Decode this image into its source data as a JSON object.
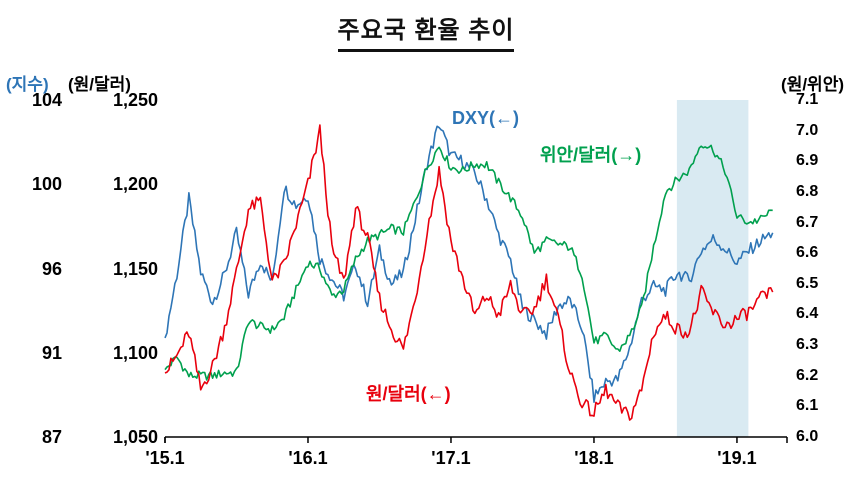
{
  "chart_data": {
    "type": "line",
    "title": "주요국 환율 추이",
    "x_range": [
      2015.0,
      2019.35
    ],
    "x_tick_labels": [
      "'15.1",
      "'16.1",
      "'17.1",
      "'18.1",
      "'19.1"
    ],
    "x_tick_positions": [
      2015.0,
      2016.0,
      2017.0,
      2018.0,
      2019.0
    ],
    "left_index_axis": {
      "unit": "(지수)",
      "ticks": [
        "104",
        "100",
        "96",
        "91",
        "87"
      ],
      "range": [
        87,
        104
      ]
    },
    "left_won_axis": {
      "unit": "(원/달러)",
      "ticks": [
        "1,250",
        "1,200",
        "1,150",
        "1,100",
        "1,050"
      ],
      "range": [
        1050,
        1250
      ]
    },
    "right_yuan_axis": {
      "unit": "(원/위안)",
      "ticks": [
        "7.1",
        "7.0",
        "6.9",
        "6.8",
        "6.7",
        "6.6",
        "6.5",
        "6.4",
        "6.3",
        "6.2",
        "6.1",
        "6.0"
      ],
      "range": [
        6.0,
        7.1
      ]
    },
    "shaded_region": {
      "from": 2018.58,
      "to": 2019.08
    },
    "x": [
      2015.0,
      2015.083,
      2015.167,
      2015.25,
      2015.333,
      2015.417,
      2015.5,
      2015.583,
      2015.667,
      2015.75,
      2015.833,
      2015.917,
      2016.0,
      2016.083,
      2016.167,
      2016.25,
      2016.333,
      2016.417,
      2016.5,
      2016.583,
      2016.667,
      2016.75,
      2016.833,
      2016.917,
      2017.0,
      2017.083,
      2017.167,
      2017.25,
      2017.333,
      2017.417,
      2017.5,
      2017.583,
      2017.667,
      2017.75,
      2017.833,
      2017.917,
      2018.0,
      2018.083,
      2018.167,
      2018.25,
      2018.333,
      2018.417,
      2018.5,
      2018.583,
      2018.667,
      2018.75,
      2018.833,
      2018.917,
      2019.0,
      2019.083,
      2019.167,
      2019.25
    ],
    "series": [
      {
        "name": "DXY",
        "label": "DXY(←)",
        "axis": "left_index",
        "color_key": "dxy",
        "values": [
          92.0,
          95.2,
          99.0,
          95.3,
          93.8,
          95.2,
          97.3,
          94.2,
          95.9,
          94.8,
          99.6,
          98.7,
          99.2,
          96.0,
          95.0,
          94.1,
          95.7,
          93.8,
          96.4,
          94.7,
          95.3,
          98.0,
          100.8,
          102.8,
          101.2,
          100.9,
          100.3,
          99.0,
          97.2,
          95.9,
          93.5,
          92.9,
          92.2,
          93.6,
          93.9,
          92.5,
          89.0,
          89.8,
          89.9,
          91.5,
          93.9,
          94.6,
          94.4,
          95.3,
          94.9,
          96.4,
          97.0,
          96.5,
          95.8,
          96.4,
          96.9,
          97.3
        ]
      },
      {
        "name": "위안/달러",
        "label": "위안/달러(→)",
        "axis": "right_yuan",
        "color_key": "cny",
        "values": [
          6.22,
          6.26,
          6.2,
          6.2,
          6.2,
          6.21,
          6.21,
          6.38,
          6.36,
          6.35,
          6.39,
          6.48,
          6.57,
          6.55,
          6.46,
          6.48,
          6.58,
          6.64,
          6.66,
          6.68,
          6.67,
          6.77,
          6.88,
          6.95,
          6.88,
          6.87,
          6.89,
          6.89,
          6.83,
          6.78,
          6.72,
          6.6,
          6.64,
          6.63,
          6.62,
          6.53,
          6.31,
          6.33,
          6.28,
          6.33,
          6.42,
          6.62,
          6.8,
          6.84,
          6.87,
          6.96,
          6.94,
          6.87,
          6.72,
          6.7,
          6.71,
          6.74
        ]
      },
      {
        "name": "원/달러",
        "label": "원/달러(←)",
        "axis": "left_won",
        "color_key": "krw",
        "values": [
          1088,
          1098,
          1112,
          1078,
          1092,
          1115,
          1148,
          1185,
          1190,
          1142,
          1152,
          1176,
          1200,
          1232,
          1162,
          1142,
          1186,
          1168,
          1132,
          1114,
          1102,
          1132,
          1172,
          1208,
          1166,
          1144,
          1122,
          1134,
          1122,
          1140,
          1122,
          1126,
          1144,
          1120,
          1088,
          1070,
          1064,
          1078,
          1068,
          1062,
          1078,
          1112,
          1122,
          1114,
          1112,
          1136,
          1124,
          1116,
          1120,
          1124,
          1132,
          1136
        ]
      }
    ]
  },
  "colors": {
    "dxy": "#2e75b6",
    "krw": "#e8000d",
    "cny": "#00a04e",
    "shade": "#d9eaf2",
    "axis": "#000000"
  }
}
